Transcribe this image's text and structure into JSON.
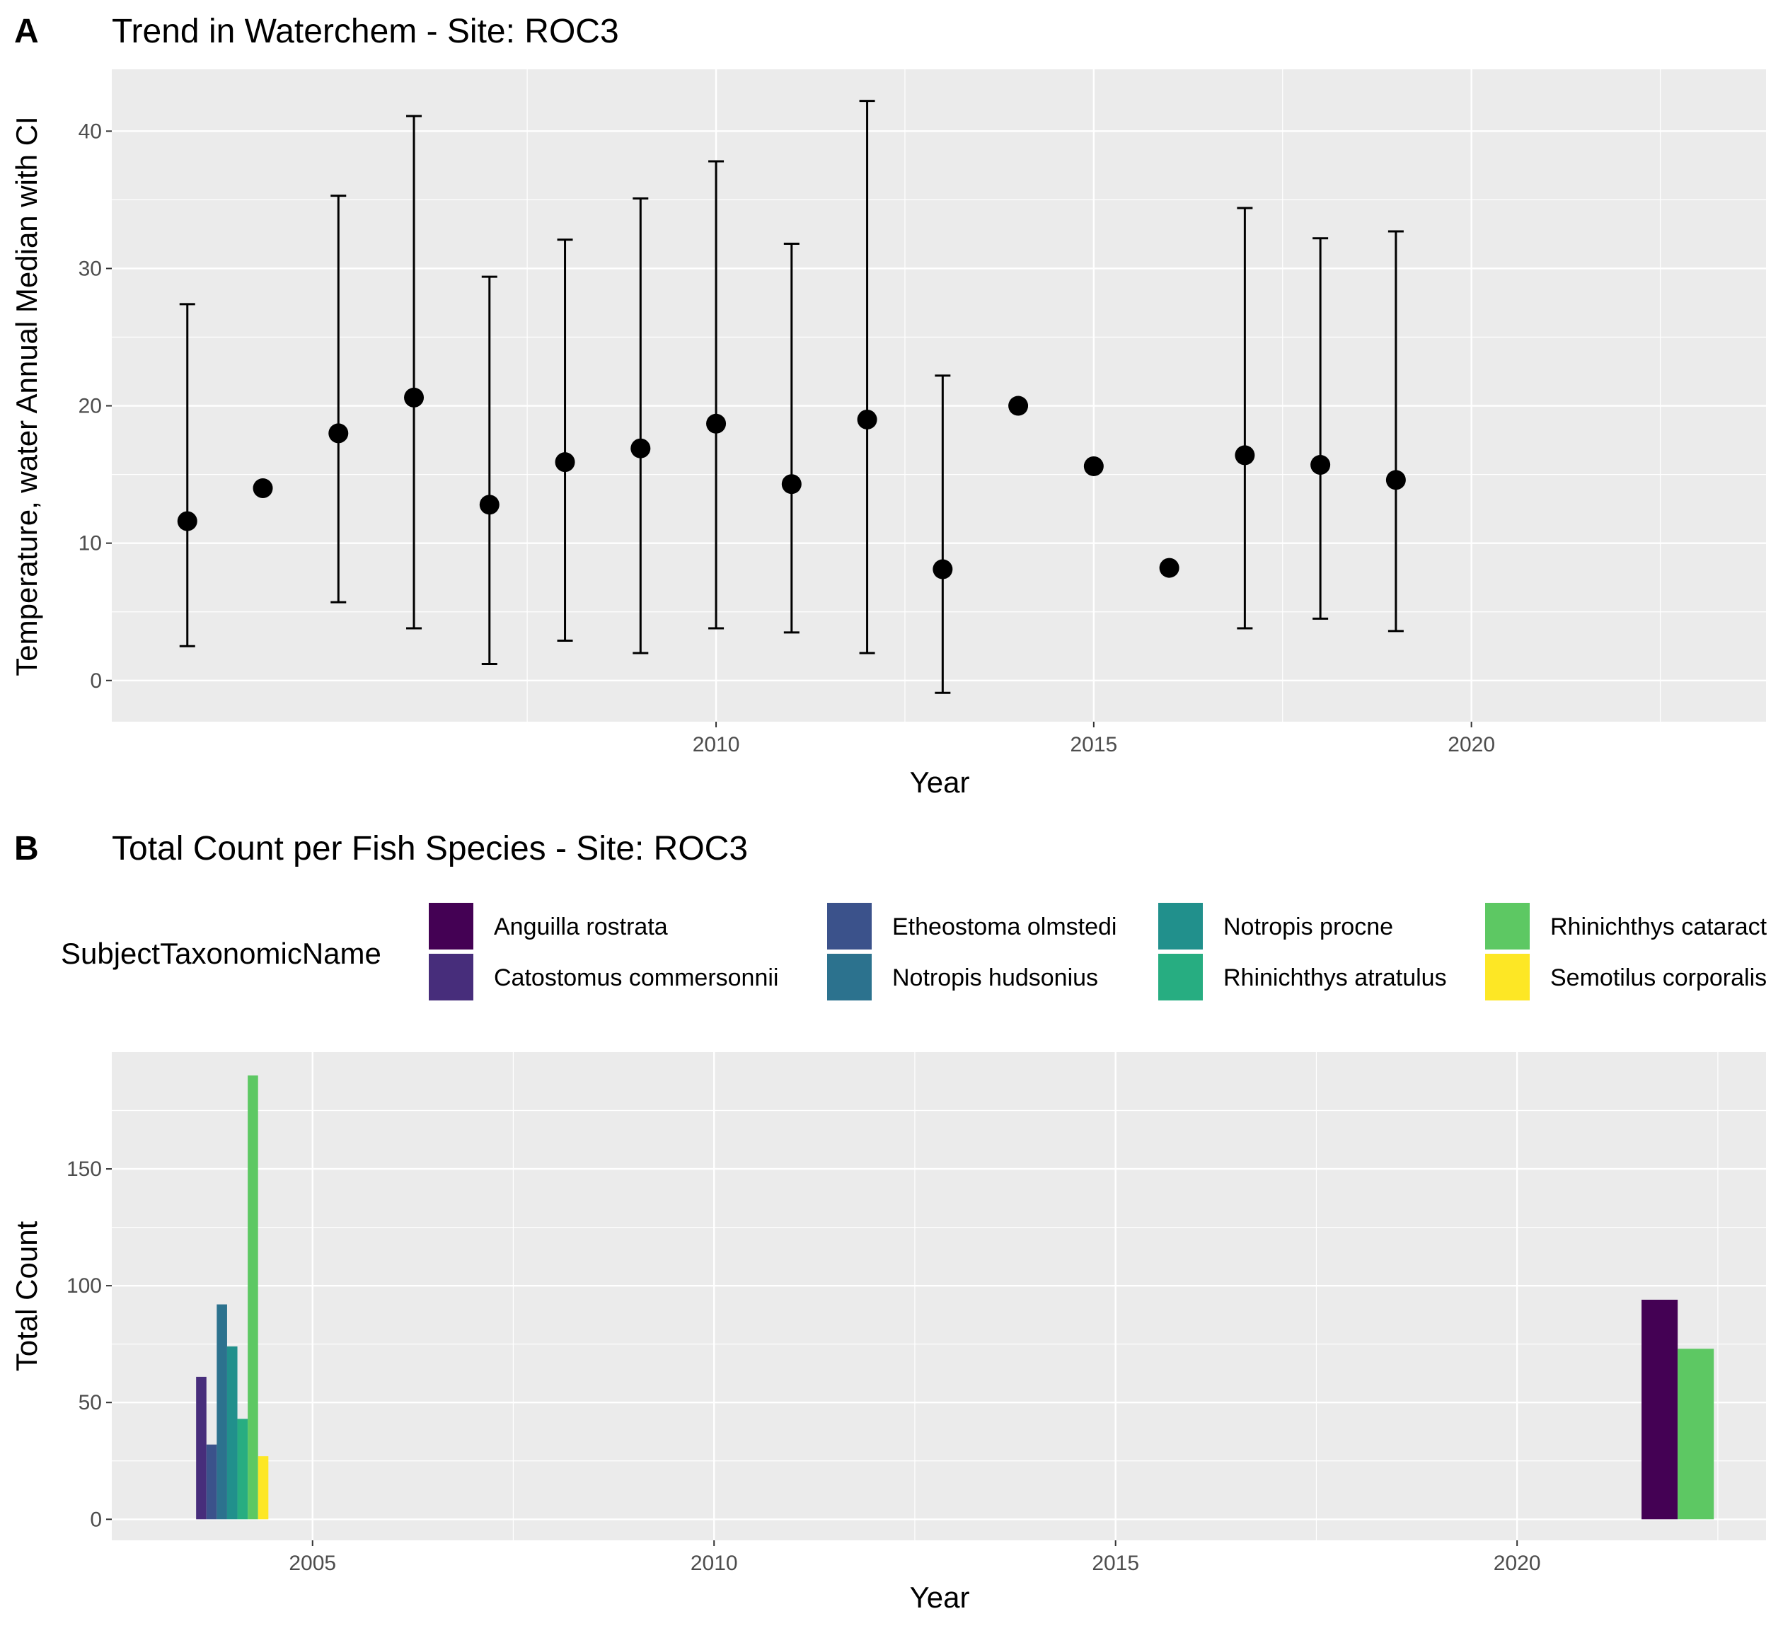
{
  "panel_a": {
    "tag": "A",
    "title": "Trend in Waterchem - Site: ROC3",
    "xlabel": "Year",
    "ylabel": "Temperature, water Annual Median with CI"
  },
  "panel_b": {
    "tag": "B",
    "title": "Total Count per Fish Species - Site: ROC3",
    "xlabel": "Year",
    "ylabel": "Total Count",
    "legend_title": "SubjectTaxonomicName"
  },
  "colors": {
    "panel_bg": "#ebebeb",
    "grid": "#ffffff",
    "point": "#000000"
  },
  "chart_data": [
    {
      "type": "scatter",
      "title": "Trend in Waterchem - Site: ROC3",
      "xlabel": "Year",
      "ylabel": "Temperature, water Annual Median with CI",
      "xlim": [
        2002.0,
        2023.9
      ],
      "ylim": [
        -3,
        44.5
      ],
      "x_ticks": [
        2010,
        2015,
        2020
      ],
      "y_ticks": [
        0,
        10,
        20,
        30,
        40
      ],
      "grid": true,
      "points": [
        {
          "x": 2003,
          "y": 11.6,
          "low": 2.5,
          "high": 27.4
        },
        {
          "x": 2004,
          "y": 14.0
        },
        {
          "x": 2005,
          "y": 18.0,
          "low": 5.7,
          "high": 35.3
        },
        {
          "x": 2006,
          "y": 20.6,
          "low": 3.8,
          "high": 41.1
        },
        {
          "x": 2007,
          "y": 12.8,
          "low": 1.2,
          "high": 29.4
        },
        {
          "x": 2008,
          "y": 15.9,
          "low": 2.9,
          "high": 32.1
        },
        {
          "x": 2009,
          "y": 16.9,
          "low": 2.0,
          "high": 35.1
        },
        {
          "x": 2010,
          "y": 18.7,
          "low": 3.8,
          "high": 37.8
        },
        {
          "x": 2011,
          "y": 14.3,
          "low": 3.5,
          "high": 31.8
        },
        {
          "x": 2012,
          "y": 19.0,
          "low": 2.0,
          "high": 42.2
        },
        {
          "x": 2013,
          "y": 8.1,
          "low": -0.9,
          "high": 22.2
        },
        {
          "x": 2014,
          "y": 20.0
        },
        {
          "x": 2015,
          "y": 15.6
        },
        {
          "x": 2016,
          "y": 8.2
        },
        {
          "x": 2017,
          "y": 16.4,
          "low": 3.8,
          "high": 34.4
        },
        {
          "x": 2018,
          "y": 15.7,
          "low": 4.5,
          "high": 32.2
        },
        {
          "x": 2019,
          "y": 14.6,
          "low": 3.6,
          "high": 32.7
        }
      ]
    },
    {
      "type": "bar",
      "title": "Total Count per Fish Species - Site: ROC3",
      "xlabel": "Year",
      "ylabel": "Total Count",
      "xlim": [
        2002.5,
        2023.1
      ],
      "ylim": [
        -9,
        200
      ],
      "x_ticks": [
        2005,
        2010,
        2015,
        2020
      ],
      "y_ticks": [
        0,
        50,
        100,
        150
      ],
      "grid": true,
      "legend_position": "top",
      "series": [
        {
          "name": "Anguilla rostrata",
          "color": "#440154",
          "values": [
            {
              "x": 2022,
              "y": 94
            }
          ]
        },
        {
          "name": "Catostomus commersonnii",
          "color": "#472D7B",
          "values": [
            {
              "x": 2004,
              "y": 61
            }
          ]
        },
        {
          "name": "Etheostoma olmstedi",
          "color": "#3B528B",
          "values": [
            {
              "x": 2004,
              "y": 32
            }
          ]
        },
        {
          "name": "Notropis hudsonius",
          "color": "#2C728E",
          "values": [
            {
              "x": 2004,
              "y": 92
            }
          ]
        },
        {
          "name": "Notropis procne",
          "color": "#21908C",
          "values": [
            {
              "x": 2004,
              "y": 74
            }
          ]
        },
        {
          "name": "Rhinichthys atratulus",
          "color": "#27AD81",
          "values": [
            {
              "x": 2004,
              "y": 43
            }
          ]
        },
        {
          "name": "Rhinichthys cataract",
          "color": "#5DC863",
          "values": [
            {
              "x": 2004,
              "y": 190
            },
            {
              "x": 2022,
              "y": 73
            }
          ]
        },
        {
          "name": "Semotilus corporalis",
          "color": "#FDE725",
          "values": [
            {
              "x": 2004,
              "y": 27
            }
          ]
        }
      ]
    }
  ]
}
